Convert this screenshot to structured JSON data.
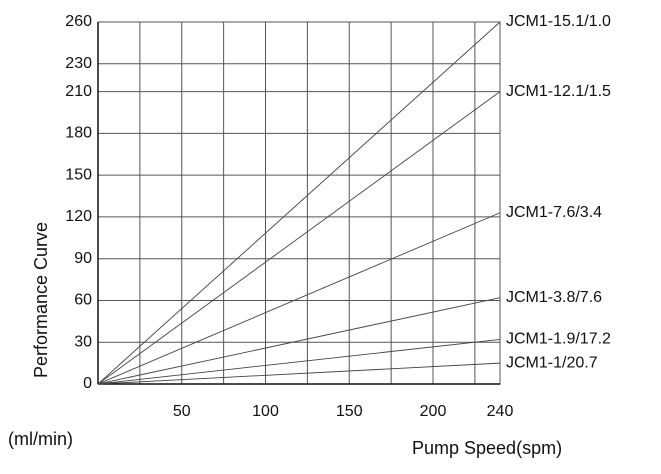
{
  "chart_data": {
    "type": "line",
    "y_label": "Performance Curve",
    "y_unit": "(ml/min)",
    "x_label": "Pump Speed(spm)",
    "x": [
      0,
      240
    ],
    "xlim": [
      0,
      240
    ],
    "xticks": [
      50,
      100,
      150,
      200,
      240
    ],
    "xgrid": [
      25,
      75,
      125,
      175,
      225
    ],
    "ylim": [
      0,
      260
    ],
    "yticks": [
      0,
      30,
      60,
      90,
      120,
      150,
      180,
      210,
      230,
      260
    ],
    "grid": true,
    "series": [
      {
        "name": "JCM1-15.1/1.0",
        "color": "#444444",
        "values": [
          0,
          260
        ]
      },
      {
        "name": "JCM1-12.1/1.5",
        "color": "#444444",
        "values": [
          0,
          210
        ]
      },
      {
        "name": "JCM1-7.6/3.4",
        "color": "#444444",
        "values": [
          0,
          123
        ]
      },
      {
        "name": "JCM1-3.8/7.6",
        "color": "#444444",
        "values": [
          0,
          62
        ]
      },
      {
        "name": "JCM1-1.9/17.2",
        "color": "#444444",
        "values": [
          0,
          32
        ]
      },
      {
        "name": "JCM1-1/20.7",
        "color": "#444444",
        "values": [
          0,
          15
        ]
      }
    ]
  }
}
